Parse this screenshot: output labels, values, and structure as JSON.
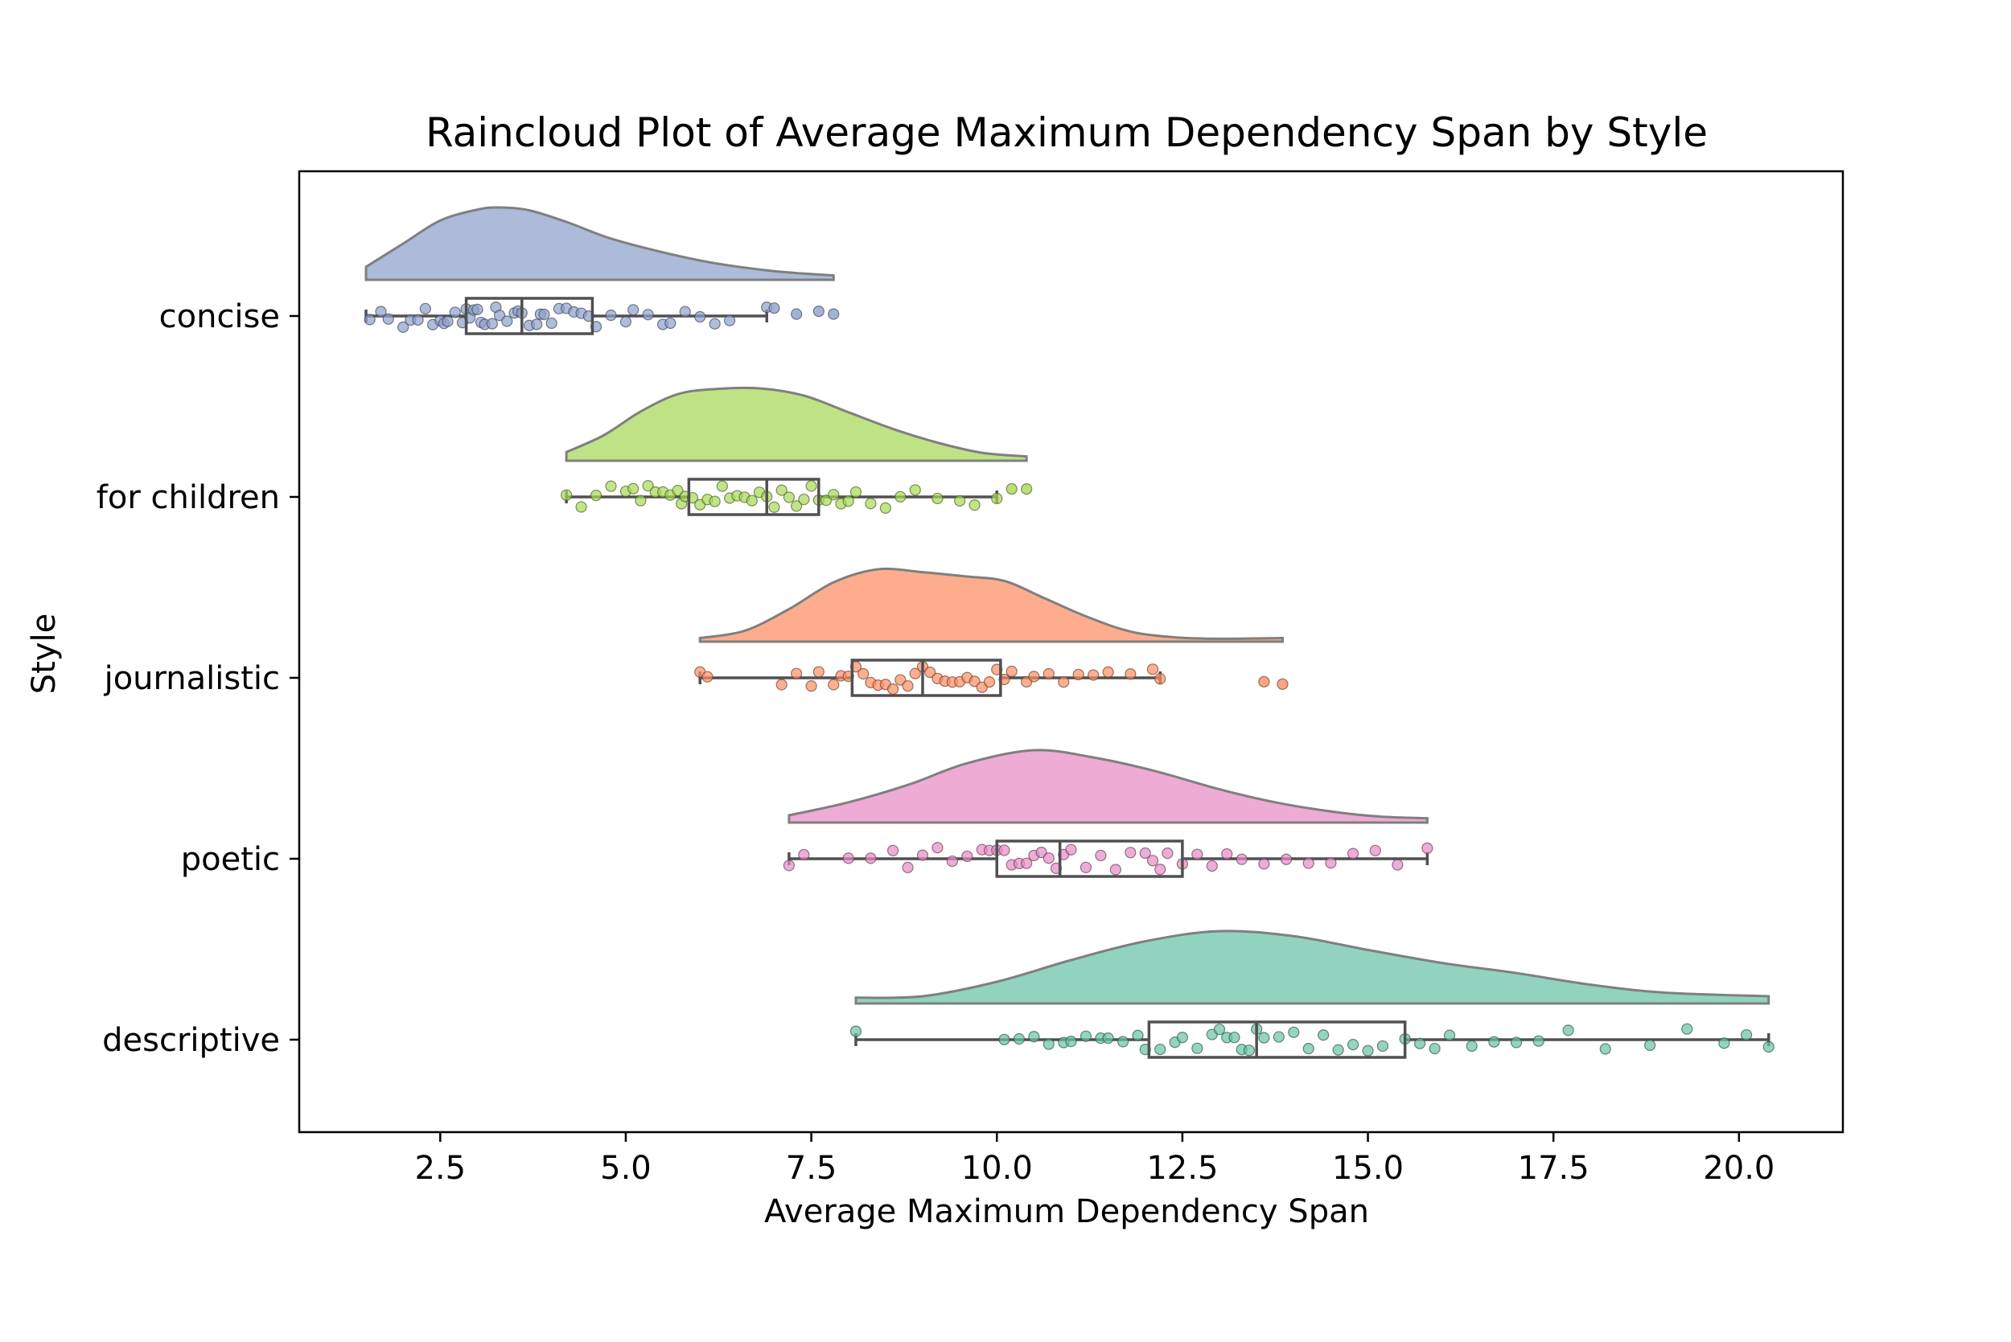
{
  "chart_data": {
    "type": "raincloud",
    "orientation": "horizontal",
    "title": "Raincloud Plot of Average Maximum Dependency Span by Style",
    "xlabel": "Average Maximum Dependency Span",
    "ylabel": "Style",
    "xlim": [
      0.6,
      21.4
    ],
    "xticks": [
      2.5,
      5.0,
      7.5,
      10.0,
      12.5,
      15.0,
      17.5,
      20.0
    ],
    "xtick_labels": [
      "2.5",
      "5.0",
      "7.5",
      "10.0",
      "12.5",
      "15.0",
      "17.5",
      "20.0"
    ],
    "grid": false,
    "series": [
      {
        "name": "concise",
        "color": "#8da0cb",
        "min": 1.5,
        "q1": 2.85,
        "median": 3.6,
        "q3": 4.55,
        "whisker_high": 6.9,
        "max": 7.8,
        "density": [
          [
            1.5,
            0.18
          ],
          [
            2.0,
            0.5
          ],
          [
            2.5,
            0.82
          ],
          [
            3.0,
            0.97
          ],
          [
            3.3,
            1.0
          ],
          [
            3.7,
            0.96
          ],
          [
            4.2,
            0.8
          ],
          [
            4.8,
            0.57
          ],
          [
            5.5,
            0.38
          ],
          [
            6.2,
            0.23
          ],
          [
            7.0,
            0.12
          ],
          [
            7.8,
            0.06
          ]
        ],
        "points": [
          1.55,
          1.7,
          1.8,
          2.0,
          2.1,
          2.2,
          2.3,
          2.4,
          2.5,
          2.55,
          2.6,
          2.7,
          2.8,
          2.85,
          2.9,
          2.95,
          3.0,
          3.05,
          3.1,
          3.2,
          3.25,
          3.3,
          3.4,
          3.5,
          3.55,
          3.6,
          3.7,
          3.8,
          3.85,
          3.9,
          4.0,
          4.1,
          4.2,
          4.3,
          4.4,
          4.5,
          4.6,
          4.8,
          5.0,
          5.1,
          5.3,
          5.5,
          5.6,
          5.8,
          6.0,
          6.2,
          6.4,
          6.9,
          7.0,
          7.3,
          7.6,
          7.8
        ],
        "outliers": [
          7.0,
          7.3,
          7.6,
          7.8
        ]
      },
      {
        "name": "for children",
        "color": "#a6d854",
        "min": 4.2,
        "q1": 5.85,
        "median": 6.9,
        "q3": 7.6,
        "whisker_high": 10.0,
        "max": 10.4,
        "density": [
          [
            4.2,
            0.12
          ],
          [
            4.7,
            0.35
          ],
          [
            5.2,
            0.68
          ],
          [
            5.7,
            0.92
          ],
          [
            6.2,
            0.99
          ],
          [
            6.8,
            1.0
          ],
          [
            7.4,
            0.9
          ],
          [
            8.0,
            0.67
          ],
          [
            8.6,
            0.44
          ],
          [
            9.2,
            0.25
          ],
          [
            9.8,
            0.11
          ],
          [
            10.4,
            0.06
          ]
        ],
        "points": [
          4.2,
          4.4,
          4.6,
          4.8,
          5.0,
          5.1,
          5.2,
          5.3,
          5.4,
          5.5,
          5.6,
          5.7,
          5.75,
          5.8,
          5.9,
          6.0,
          6.1,
          6.2,
          6.3,
          6.4,
          6.5,
          6.6,
          6.7,
          6.8,
          6.9,
          7.0,
          7.1,
          7.2,
          7.3,
          7.4,
          7.5,
          7.6,
          7.7,
          7.8,
          7.9,
          8.0,
          8.1,
          8.3,
          8.5,
          8.7,
          8.9,
          9.2,
          9.5,
          9.7,
          10.0,
          10.2,
          10.4
        ],
        "outliers": [
          10.2,
          10.4
        ]
      },
      {
        "name": "journalistic",
        "color": "#fc8d62",
        "min": 6.0,
        "q1": 8.05,
        "median": 9.0,
        "q3": 10.05,
        "whisker_high": 12.2,
        "max": 13.85,
        "density": [
          [
            6.0,
            0.05
          ],
          [
            6.6,
            0.15
          ],
          [
            7.2,
            0.45
          ],
          [
            7.8,
            0.82
          ],
          [
            8.4,
            1.0
          ],
          [
            9.0,
            0.96
          ],
          [
            9.6,
            0.9
          ],
          [
            10.1,
            0.84
          ],
          [
            10.6,
            0.62
          ],
          [
            11.2,
            0.35
          ],
          [
            11.8,
            0.14
          ],
          [
            12.4,
            0.06
          ],
          [
            13.0,
            0.04
          ],
          [
            13.85,
            0.05
          ]
        ],
        "points": [
          6.0,
          6.1,
          7.1,
          7.3,
          7.5,
          7.6,
          7.8,
          7.9,
          8.0,
          8.1,
          8.2,
          8.3,
          8.4,
          8.5,
          8.6,
          8.7,
          8.8,
          8.9,
          9.0,
          9.1,
          9.2,
          9.3,
          9.4,
          9.5,
          9.6,
          9.7,
          9.8,
          9.9,
          10.0,
          10.1,
          10.2,
          10.4,
          10.5,
          10.7,
          10.9,
          11.1,
          11.3,
          11.5,
          11.8,
          12.1,
          12.2,
          13.6,
          13.85
        ],
        "outliers": [
          13.6,
          13.85
        ]
      },
      {
        "name": "poetic",
        "color": "#e78ac3",
        "min": 7.2,
        "q1": 10.0,
        "median": 10.85,
        "q3": 12.5,
        "whisker_high": 15.8,
        "max": 15.8,
        "density": [
          [
            7.2,
            0.1
          ],
          [
            8.0,
            0.28
          ],
          [
            8.8,
            0.52
          ],
          [
            9.6,
            0.82
          ],
          [
            10.5,
            1.0
          ],
          [
            11.3,
            0.9
          ],
          [
            12.1,
            0.72
          ],
          [
            13.0,
            0.46
          ],
          [
            13.8,
            0.27
          ],
          [
            14.6,
            0.14
          ],
          [
            15.2,
            0.08
          ],
          [
            15.8,
            0.06
          ]
        ],
        "points": [
          7.2,
          7.4,
          8.0,
          8.3,
          8.6,
          8.8,
          9.0,
          9.2,
          9.4,
          9.6,
          9.8,
          9.9,
          10.0,
          10.1,
          10.2,
          10.3,
          10.4,
          10.5,
          10.6,
          10.7,
          10.8,
          10.9,
          11.0,
          11.2,
          11.4,
          11.6,
          11.8,
          12.0,
          12.1,
          12.2,
          12.3,
          12.5,
          12.7,
          12.9,
          13.1,
          13.3,
          13.6,
          13.9,
          14.2,
          14.5,
          14.8,
          15.1,
          15.4,
          15.8
        ],
        "outliers": []
      },
      {
        "name": "descriptive",
        "color": "#66c2a5",
        "min": 8.1,
        "q1": 12.05,
        "median": 13.5,
        "q3": 15.5,
        "whisker_high": 20.4,
        "max": 20.4,
        "density": [
          [
            8.1,
            0.08
          ],
          [
            9.0,
            0.1
          ],
          [
            10.0,
            0.3
          ],
          [
            11.0,
            0.6
          ],
          [
            12.0,
            0.86
          ],
          [
            13.0,
            1.0
          ],
          [
            14.0,
            0.93
          ],
          [
            15.0,
            0.74
          ],
          [
            16.0,
            0.56
          ],
          [
            17.0,
            0.42
          ],
          [
            18.0,
            0.26
          ],
          [
            19.0,
            0.15
          ],
          [
            20.4,
            0.1
          ]
        ],
        "points": [
          8.1,
          10.1,
          10.3,
          10.5,
          10.7,
          10.9,
          11.0,
          11.2,
          11.4,
          11.5,
          11.7,
          11.9,
          12.0,
          12.2,
          12.4,
          12.5,
          12.7,
          12.9,
          13.0,
          13.1,
          13.2,
          13.3,
          13.4,
          13.5,
          13.6,
          13.8,
          14.0,
          14.2,
          14.4,
          14.6,
          14.8,
          15.0,
          15.2,
          15.5,
          15.7,
          15.9,
          16.1,
          16.4,
          16.7,
          17.0,
          17.3,
          17.7,
          18.2,
          18.8,
          19.3,
          19.8,
          20.1,
          20.4
        ],
        "outliers": []
      }
    ]
  }
}
